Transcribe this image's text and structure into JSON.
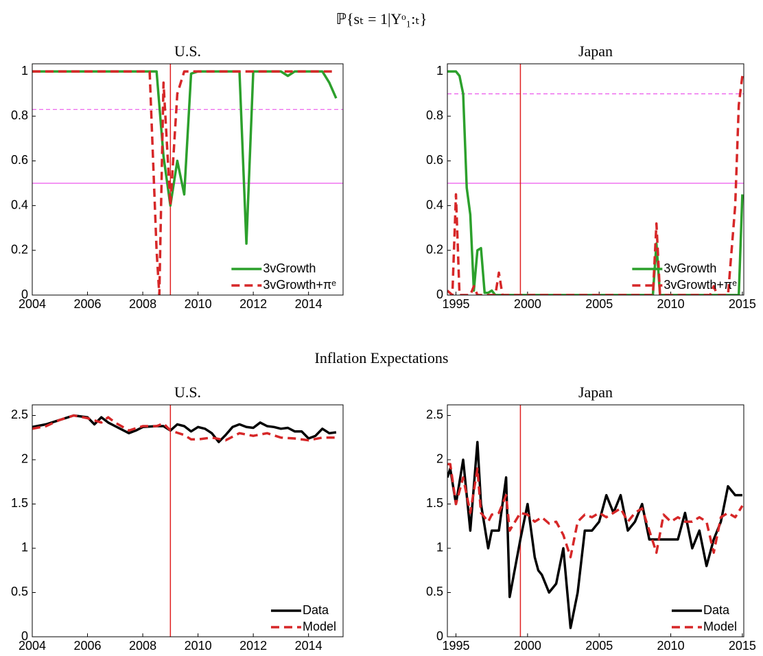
{
  "figure_titles": [
    "ℙ{sₜ = 1|Yᵒ₁:ₜ}",
    "Inflation Expectations"
  ],
  "chart_data": [
    {
      "type": "line",
      "title": "U.S.",
      "xlim": [
        2004,
        2015.25
      ],
      "xticks": [
        2004,
        2006,
        2008,
        2010,
        2012,
        2014
      ],
      "ylim": [
        0,
        1.034
      ],
      "yticks": [
        0,
        0.2,
        0.4,
        0.6,
        0.8,
        1
      ],
      "legend": "lower right",
      "hlines": [
        {
          "value": 0.5,
          "color": "#ee66ee",
          "style": "solid"
        },
        {
          "value": 0.83,
          "color": "#ee66ee",
          "style": "dashed"
        }
      ],
      "vline": {
        "value": 2009,
        "color": "#e02020"
      },
      "series": [
        {
          "name": "3vGrowth",
          "color": "#2ca02c",
          "style": "solid",
          "x": [
            2004,
            2008.5,
            2008.75,
            2009,
            2009.25,
            2009.5,
            2009.75,
            2010,
            2011.5,
            2011.75,
            2012,
            2013,
            2013.25,
            2013.5,
            2014.5,
            2014.75,
            2015
          ],
          "values": [
            1,
            1,
            0.62,
            0.4,
            0.6,
            0.45,
            0.99,
            1,
            1,
            0.23,
            1,
            1,
            0.98,
            1,
            1,
            0.95,
            0.88
          ]
        },
        {
          "name": "3vGrowth+πᵉ",
          "color": "#d62728",
          "style": "dashed",
          "x": [
            2004,
            2008.25,
            2008.5,
            2008.6,
            2008.75,
            2009,
            2009.25,
            2009.5,
            2015
          ],
          "values": [
            1,
            1,
            0.2,
            0,
            0.95,
            0.4,
            0.9,
            1,
            1
          ]
        }
      ]
    },
    {
      "type": "line",
      "title": "Japan",
      "xlim": [
        1994.4,
        2015.1
      ],
      "xticks": [
        1995,
        2000,
        2005,
        2010,
        2015
      ],
      "ylim": [
        0,
        1.034
      ],
      "yticks": [
        0,
        0.2,
        0.4,
        0.6,
        0.8,
        1
      ],
      "legend": "lower right",
      "hlines": [
        {
          "value": 0.5,
          "color": "#ee66ee",
          "style": "solid"
        },
        {
          "value": 0.9,
          "color": "#ee66ee",
          "style": "dashed"
        }
      ],
      "vline": {
        "value": 1999.5,
        "color": "#e02020"
      },
      "series": [
        {
          "name": "3vGrowth",
          "color": "#2ca02c",
          "style": "solid",
          "x": [
            1994.4,
            1995,
            1995.25,
            1995.5,
            1995.75,
            1996,
            1996.25,
            1996.5,
            1996.75,
            1997,
            1997.25,
            1997.5,
            1997.75,
            2008.75,
            2009,
            2009.25,
            2014.75,
            2015
          ],
          "values": [
            1,
            1,
            0.98,
            0.9,
            0.48,
            0.36,
            0.02,
            0.2,
            0.21,
            0.01,
            0.01,
            0.02,
            0,
            0,
            0.23,
            0,
            0,
            0.45
          ]
        },
        {
          "name": "3vGrowth+πᵉ",
          "color": "#d62728",
          "style": "dashed",
          "x": [
            1994.4,
            1994.75,
            1995,
            1995.25,
            1996,
            1996.25,
            1996.5,
            1997.75,
            1998,
            1998.25,
            2008.75,
            2009,
            2009.25,
            2012.75,
            2013,
            2013.25,
            2014,
            2014.5,
            2014.75,
            2015
          ],
          "values": [
            0.02,
            0,
            0.45,
            0,
            0,
            0.04,
            0,
            0,
            0.1,
            0,
            0,
            0.32,
            0,
            0,
            0.04,
            0,
            0,
            0.4,
            0.85,
            0.98
          ]
        }
      ]
    },
    {
      "type": "line",
      "title": "U.S.",
      "xlim": [
        2004,
        2015.25
      ],
      "xticks": [
        2004,
        2006,
        2008,
        2010,
        2012,
        2014
      ],
      "ylim": [
        0,
        2.62
      ],
      "yticks": [
        0,
        0.5,
        1,
        1.5,
        2,
        2.5
      ],
      "legend": "lower right",
      "vline": {
        "value": 2009,
        "color": "#e02020"
      },
      "series": [
        {
          "name": "Data",
          "color": "#000000",
          "style": "solid",
          "x": [
            2004,
            2004.5,
            2005,
            2005.5,
            2006,
            2006.25,
            2006.5,
            2006.75,
            2007,
            2007.5,
            2007.75,
            2008,
            2008.5,
            2008.75,
            2009,
            2009.25,
            2009.5,
            2009.75,
            2010,
            2010.25,
            2010.5,
            2010.75,
            2011,
            2011.25,
            2011.5,
            2011.75,
            2012,
            2012.25,
            2012.5,
            2012.75,
            2013,
            2013.25,
            2013.5,
            2013.75,
            2014,
            2014.25,
            2014.5,
            2014.75,
            2015
          ],
          "values": [
            2.37,
            2.4,
            2.45,
            2.5,
            2.48,
            2.4,
            2.48,
            2.42,
            2.38,
            2.3,
            2.33,
            2.37,
            2.38,
            2.38,
            2.33,
            2.4,
            2.38,
            2.32,
            2.37,
            2.35,
            2.3,
            2.2,
            2.28,
            2.37,
            2.4,
            2.37,
            2.36,
            2.42,
            2.38,
            2.37,
            2.35,
            2.36,
            2.32,
            2.32,
            2.24,
            2.27,
            2.35,
            2.3,
            2.31
          ]
        },
        {
          "name": "Model",
          "color": "#d62728",
          "style": "dashed",
          "x": [
            2004,
            2004.5,
            2005,
            2005.5,
            2006,
            2006.5,
            2006.75,
            2007,
            2007.5,
            2008,
            2008.5,
            2008.75,
            2009,
            2009.5,
            2009.75,
            2010,
            2010.5,
            2011,
            2011.5,
            2012,
            2012.5,
            2013,
            2013.5,
            2014,
            2014.5,
            2015
          ],
          "values": [
            2.35,
            2.38,
            2.45,
            2.5,
            2.47,
            2.42,
            2.48,
            2.42,
            2.33,
            2.38,
            2.38,
            2.41,
            2.33,
            2.28,
            2.23,
            2.23,
            2.25,
            2.22,
            2.3,
            2.27,
            2.3,
            2.25,
            2.24,
            2.22,
            2.25,
            2.25
          ]
        }
      ]
    },
    {
      "type": "line",
      "title": "Japan",
      "xlim": [
        1994.4,
        2015.1
      ],
      "xticks": [
        1995,
        2000,
        2005,
        2010,
        2015
      ],
      "ylim": [
        0,
        2.62
      ],
      "yticks": [
        0,
        0.5,
        1,
        1.5,
        2,
        2.5
      ],
      "legend": "lower right",
      "vline": {
        "value": 1999.5,
        "color": "#e02020"
      },
      "series": [
        {
          "name": "Data",
          "color": "#000000",
          "style": "solid",
          "x": [
            1994.4,
            1994.6,
            1995,
            1995.5,
            1996,
            1996.5,
            1996.75,
            1997.25,
            1997.5,
            1998,
            1998.5,
            1998.75,
            1999.5,
            2000,
            2000.5,
            2000.75,
            2001,
            2001.5,
            2002,
            2002.5,
            2003,
            2003.5,
            2004,
            2004.5,
            2005,
            2005.5,
            2006,
            2006.5,
            2007,
            2007.5,
            2008,
            2008.5,
            2009,
            2010,
            2010.5,
            2011,
            2011.5,
            2012,
            2012.5,
            2013,
            2013.5,
            2014,
            2014.5,
            2015
          ],
          "values": [
            1.8,
            1.9,
            1.5,
            2.0,
            1.2,
            2.2,
            1.5,
            1.0,
            1.2,
            1.2,
            1.8,
            0.45,
            1.1,
            1.5,
            0.9,
            0.75,
            0.7,
            0.5,
            0.6,
            1.0,
            0.1,
            0.5,
            1.2,
            1.2,
            1.3,
            1.6,
            1.4,
            1.6,
            1.2,
            1.3,
            1.5,
            1.1,
            1.1,
            1.1,
            1.1,
            1.4,
            1.0,
            1.2,
            0.8,
            1.1,
            1.3,
            1.7,
            1.6,
            1.6
          ]
        },
        {
          "name": "Model",
          "color": "#d62728",
          "style": "dashed",
          "x": [
            1994.4,
            1994.6,
            1995,
            1995.5,
            1996,
            1996.5,
            1996.75,
            1997.25,
            1997.5,
            1998,
            1998.5,
            1998.75,
            1999.5,
            2000,
            2000.5,
            2001,
            2001.5,
            2002,
            2002.5,
            2003,
            2003.5,
            2004,
            2004.5,
            2005,
            2005.5,
            2006,
            2006.5,
            2007,
            2007.5,
            2008,
            2008.5,
            2009,
            2009.5,
            2010,
            2010.5,
            2011,
            2011.5,
            2012,
            2012.5,
            2013,
            2013.5,
            2014,
            2014.5,
            2015
          ],
          "values": [
            1.95,
            1.95,
            1.5,
            1.8,
            1.4,
            1.9,
            1.4,
            1.3,
            1.38,
            1.4,
            1.6,
            1.2,
            1.4,
            1.38,
            1.3,
            1.35,
            1.28,
            1.3,
            1.15,
            0.9,
            1.3,
            1.38,
            1.35,
            1.4,
            1.35,
            1.4,
            1.45,
            1.3,
            1.4,
            1.45,
            1.2,
            0.95,
            1.38,
            1.3,
            1.35,
            1.3,
            1.3,
            1.35,
            1.3,
            0.95,
            1.35,
            1.4,
            1.35,
            1.48
          ]
        }
      ]
    }
  ]
}
